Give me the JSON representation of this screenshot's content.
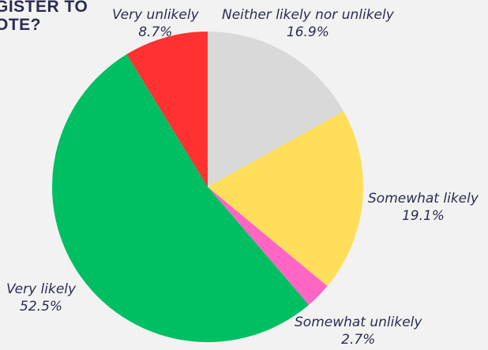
{
  "title": {
    "line1": "GISTER TO",
    "line2": "OTE?"
  },
  "chart_data": {
    "type": "pie",
    "title": "",
    "slices": [
      {
        "label": "Neither likely nor unlikely",
        "value": 16.9,
        "display": "16.9%",
        "color": "#d9d9d9"
      },
      {
        "label": "Somewhat likely",
        "value": 19.1,
        "display": "19.1%",
        "color": "#ffde59"
      },
      {
        "label": "Somewhat unlikely",
        "value": 2.7,
        "display": "2.7%",
        "color": "#ff66c4"
      },
      {
        "label": "Very likely",
        "value": 52.5,
        "display": "52.5%",
        "color": "#00bf63"
      },
      {
        "label": "Very unlikely",
        "value": 8.7,
        "display": "8.7%",
        "color": "#ff3131"
      }
    ],
    "start_angle": "12 o'clock",
    "direction": "clockwise",
    "legend": "none"
  }
}
